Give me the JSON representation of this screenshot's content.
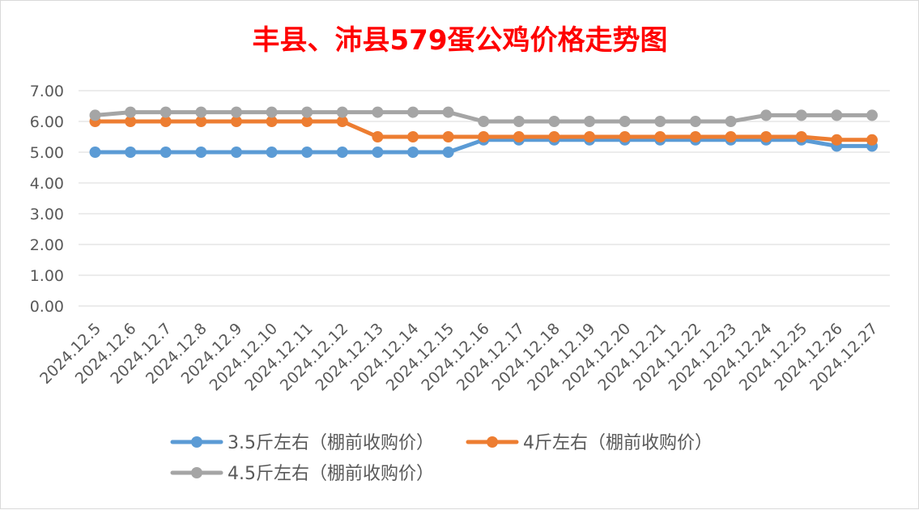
{
  "chart_data": {
    "type": "line",
    "title": "丰县、沛县579蛋公鸡价格走势图",
    "title_color": "#ff0000",
    "ylim": [
      0,
      7
    ],
    "yticks": [
      "0.00",
      "1.00",
      "2.00",
      "3.00",
      "4.00",
      "5.00",
      "6.00",
      "7.00"
    ],
    "grid": true,
    "legend_position": "bottom",
    "categories": [
      "2024.12.5",
      "2024.12.6",
      "2024.12.7",
      "2024.12.8",
      "2024.12.9",
      "2024.12.10",
      "2024.12.11",
      "2024.12.12",
      "2024.12.13",
      "2024.12.14",
      "2024.12.15",
      "2024.12.16",
      "2024.12.17",
      "2024.12.18",
      "2024.12.19",
      "2024.12.20",
      "2024.12.21",
      "2024.12.22",
      "2024.12.23",
      "2024.12.24",
      "2024.12.25",
      "2024.12.26",
      "2024.12.27"
    ],
    "series": [
      {
        "name": "3.5斤左右（棚前收购价）",
        "color": "#5b9bd5",
        "values": [
          5.0,
          5.0,
          5.0,
          5.0,
          5.0,
          5.0,
          5.0,
          5.0,
          5.0,
          5.0,
          5.0,
          5.4,
          5.4,
          5.4,
          5.4,
          5.4,
          5.4,
          5.4,
          5.4,
          5.4,
          5.4,
          5.2,
          5.2
        ]
      },
      {
        "name": "4斤左右（棚前收购价）",
        "color": "#ed7d31",
        "values": [
          6.0,
          6.0,
          6.0,
          6.0,
          6.0,
          6.0,
          6.0,
          6.0,
          5.5,
          5.5,
          5.5,
          5.5,
          5.5,
          5.5,
          5.5,
          5.5,
          5.5,
          5.5,
          5.5,
          5.5,
          5.5,
          5.4,
          5.4
        ]
      },
      {
        "name": "4.5斤左右（棚前收购价）",
        "color": "#a5a5a5",
        "values": [
          6.2,
          6.3,
          6.3,
          6.3,
          6.3,
          6.3,
          6.3,
          6.3,
          6.3,
          6.3,
          6.3,
          6.0,
          6.0,
          6.0,
          6.0,
          6.0,
          6.0,
          6.0,
          6.0,
          6.2,
          6.2,
          6.2,
          6.2
        ]
      }
    ]
  }
}
